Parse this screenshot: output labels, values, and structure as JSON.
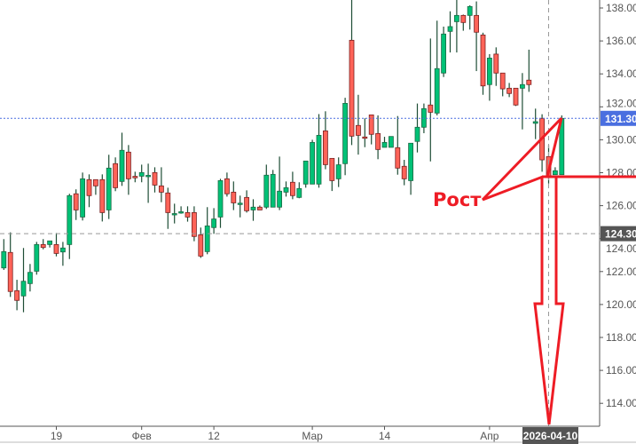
{
  "chart_data": {
    "type": "candlestick",
    "ohlc_order": [
      "open",
      "high",
      "low",
      "close"
    ],
    "candles": [
      [
        122.22,
        123.97,
        122.1,
        123.21
      ],
      [
        123.16,
        124.38,
        120.46,
        120.79
      ],
      [
        120.84,
        121.5,
        119.65,
        120.25
      ],
      [
        120.52,
        123.43,
        119.53,
        121.41
      ],
      [
        121.27,
        122.46,
        120.79,
        121.95
      ],
      [
        122.02,
        123.8,
        121.81,
        123.64
      ],
      [
        123.64,
        123.97,
        123.35,
        123.46
      ],
      [
        123.64,
        123.86,
        123.46,
        123.86
      ],
      [
        123.64,
        124.34,
        122.92,
        123.1
      ],
      [
        123.19,
        123.8,
        122.35,
        123.43
      ],
      [
        123.64,
        126.72,
        122.76,
        126.61
      ],
      [
        126.72,
        126.99,
        125.13,
        125.74
      ],
      [
        125.31,
        128.01,
        125.1,
        127.63
      ],
      [
        127.58,
        127.9,
        125.91,
        126.61
      ],
      [
        127.58,
        127.58,
        126.66,
        127.2
      ],
      [
        127.58,
        127.9,
        125.04,
        125.58
      ],
      [
        125.74,
        129.09,
        125.19,
        128.28
      ],
      [
        128.55,
        128.93,
        126.88,
        127.09
      ],
      [
        127.47,
        130.43,
        127.2,
        129.36
      ],
      [
        129.25,
        129.68,
        126.66,
        127.63
      ],
      [
        127.78,
        128.06,
        127.42,
        127.69
      ],
      [
        127.79,
        128.49,
        127.42,
        128.01
      ],
      [
        127.82,
        128.55,
        126.17,
        127.84
      ],
      [
        128.01,
        128.33,
        126.8,
        127.25
      ],
      [
        127.2,
        128.33,
        126.21,
        126.82
      ],
      [
        126.77,
        127.09,
        124.59,
        125.58
      ],
      [
        125.5,
        126.12,
        124.92,
        125.52
      ],
      [
        125.6,
        125.96,
        125.51,
        125.63
      ],
      [
        125.58,
        125.96,
        125.03,
        125.31
      ],
      [
        125.58,
        125.96,
        123.84,
        124.13
      ],
      [
        124.23,
        124.67,
        122.83,
        122.94
      ],
      [
        123.21,
        125.91,
        123.05,
        124.77
      ],
      [
        124.67,
        125.85,
        124.29,
        125.19
      ],
      [
        125.31,
        127.63,
        124.65,
        127.52
      ],
      [
        127.63,
        128.01,
        126.55,
        126.72
      ],
      [
        126.82,
        127.47,
        125.73,
        126.17
      ],
      [
        126.13,
        126.61,
        125.29,
        126.15
      ],
      [
        126.5,
        126.93,
        125.58,
        125.69
      ],
      [
        125.74,
        126.39,
        125.08,
        125.91
      ],
      [
        125.91,
        126.01,
        125.74,
        125.74
      ],
      [
        125.91,
        128.49,
        125.8,
        127.85
      ],
      [
        125.91,
        128.17,
        125.91,
        127.9
      ],
      [
        125.91,
        128.98,
        125.73,
        126.88
      ],
      [
        126.82,
        127.47,
        126.55,
        127.09
      ],
      [
        127.42,
        128.06,
        126.39,
        126.61
      ],
      [
        126.5,
        127.42,
        126.45,
        127.04
      ],
      [
        127.31,
        128.71,
        127.09,
        128.71
      ],
      [
        127.31,
        130.0,
        127.31,
        129.84
      ],
      [
        127.31,
        131.56,
        127.09,
        130.27
      ],
      [
        130.54,
        131.73,
        128.21,
        128.49
      ],
      [
        128.87,
        128.87,
        126.89,
        127.52
      ],
      [
        127.63,
        128.93,
        127.13,
        128.48
      ],
      [
        128.55,
        132.55,
        127.85,
        132.21
      ],
      [
        136.04,
        138.6,
        129.68,
        130.22
      ],
      [
        130.87,
        132.73,
        129.1,
        130.27
      ],
      [
        130.17,
        131.3,
        129.55,
        130.13
      ],
      [
        131.51,
        131.51,
        129.72,
        130.33
      ],
      [
        130.38,
        131.48,
        128.82,
        129.41
      ],
      [
        129.54,
        130.18,
        129.54,
        129.84
      ],
      [
        129.54,
        130.2,
        129.54,
        130.2
      ],
      [
        129.52,
        131.44,
        127.88,
        128.28
      ],
      [
        128.39,
        128.78,
        127.24,
        127.63
      ],
      [
        127.52,
        129.79,
        126.66,
        129.79
      ],
      [
        129.9,
        132.2,
        129.23,
        130.76
      ],
      [
        130.76,
        132.2,
        130.4,
        131.89
      ],
      [
        132.11,
        136.15,
        128.69,
        131.67
      ],
      [
        131.62,
        137.23,
        131.48,
        134.32
      ],
      [
        134.05,
        136.87,
        133.81,
        136.42
      ],
      [
        136.58,
        137.8,
        135.3,
        136.87
      ],
      [
        137.17,
        138.6,
        135.3,
        137.55
      ],
      [
        137.55,
        137.6,
        136.62,
        137.12
      ],
      [
        137.55,
        138.16,
        136.69,
        138.09
      ],
      [
        137.55,
        138.4,
        134.17,
        136.53
      ],
      [
        136.36,
        136.5,
        132.73,
        133.27
      ],
      [
        133.35,
        135.2,
        132.37,
        134.96
      ],
      [
        135.2,
        135.61,
        133.27,
        134.05
      ],
      [
        134.05,
        134.05,
        132.64,
        133.09
      ],
      [
        133.13,
        133.45,
        132.59,
        132.81
      ],
      [
        133.13,
        133.13,
        132.05,
        132.11
      ],
      [
        133.13,
        134.05,
        130.63,
        133.35
      ],
      [
        133.62,
        135.47,
        132.91,
        133.35
      ],
      [
        131.0,
        131.89,
        130.04,
        131.1
      ],
      [
        131.3,
        131.55,
        128.06,
        128.78
      ],
      [
        128.98,
        129.68,
        127.34,
        127.79
      ],
      [
        127.88,
        128.33,
        127.88,
        128.12
      ],
      [
        127.88,
        131.48,
        127.88,
        131.3
      ]
    ],
    "y_ticks": [
      "138.00",
      "136.00",
      "134.00",
      "132.00",
      "130.00",
      "128.00",
      "126.00",
      "124.00",
      "122.00",
      "120.00",
      "118.00",
      "116.00",
      "114.00"
    ],
    "y_tick_values": [
      138,
      136,
      134,
      132,
      130,
      128,
      126,
      124,
      122,
      120,
      118,
      116,
      114
    ],
    "x_ticks": [
      {
        "label": "19",
        "candle_index": 8
      },
      {
        "label": "Фев",
        "candle_index": 21
      },
      {
        "label": "12",
        "candle_index": 32
      },
      {
        "label": "Мар",
        "candle_index": 47
      },
      {
        "label": "14",
        "candle_index": 58
      },
      {
        "label": "Апр",
        "candle_index": 74
      }
    ],
    "ylim": [
      112.7,
      138.5
    ],
    "y_axis_position": "right",
    "grid": false,
    "last_price": {
      "value": 131.3,
      "label": "131.30",
      "color": "#4a6fe0"
    },
    "crosshair": {
      "price": 124.3,
      "price_label": "124.30",
      "candle_index": 83,
      "date_label": "2026-04-10"
    },
    "colors": {
      "up": "#00c176",
      "down": "#ff6358",
      "up_border": "#1b6b45",
      "down_border": "#7a2020",
      "wick": "#1e4d35",
      "annotation": "#ee1c25"
    },
    "annotation": {
      "text": "Рост"
    }
  }
}
